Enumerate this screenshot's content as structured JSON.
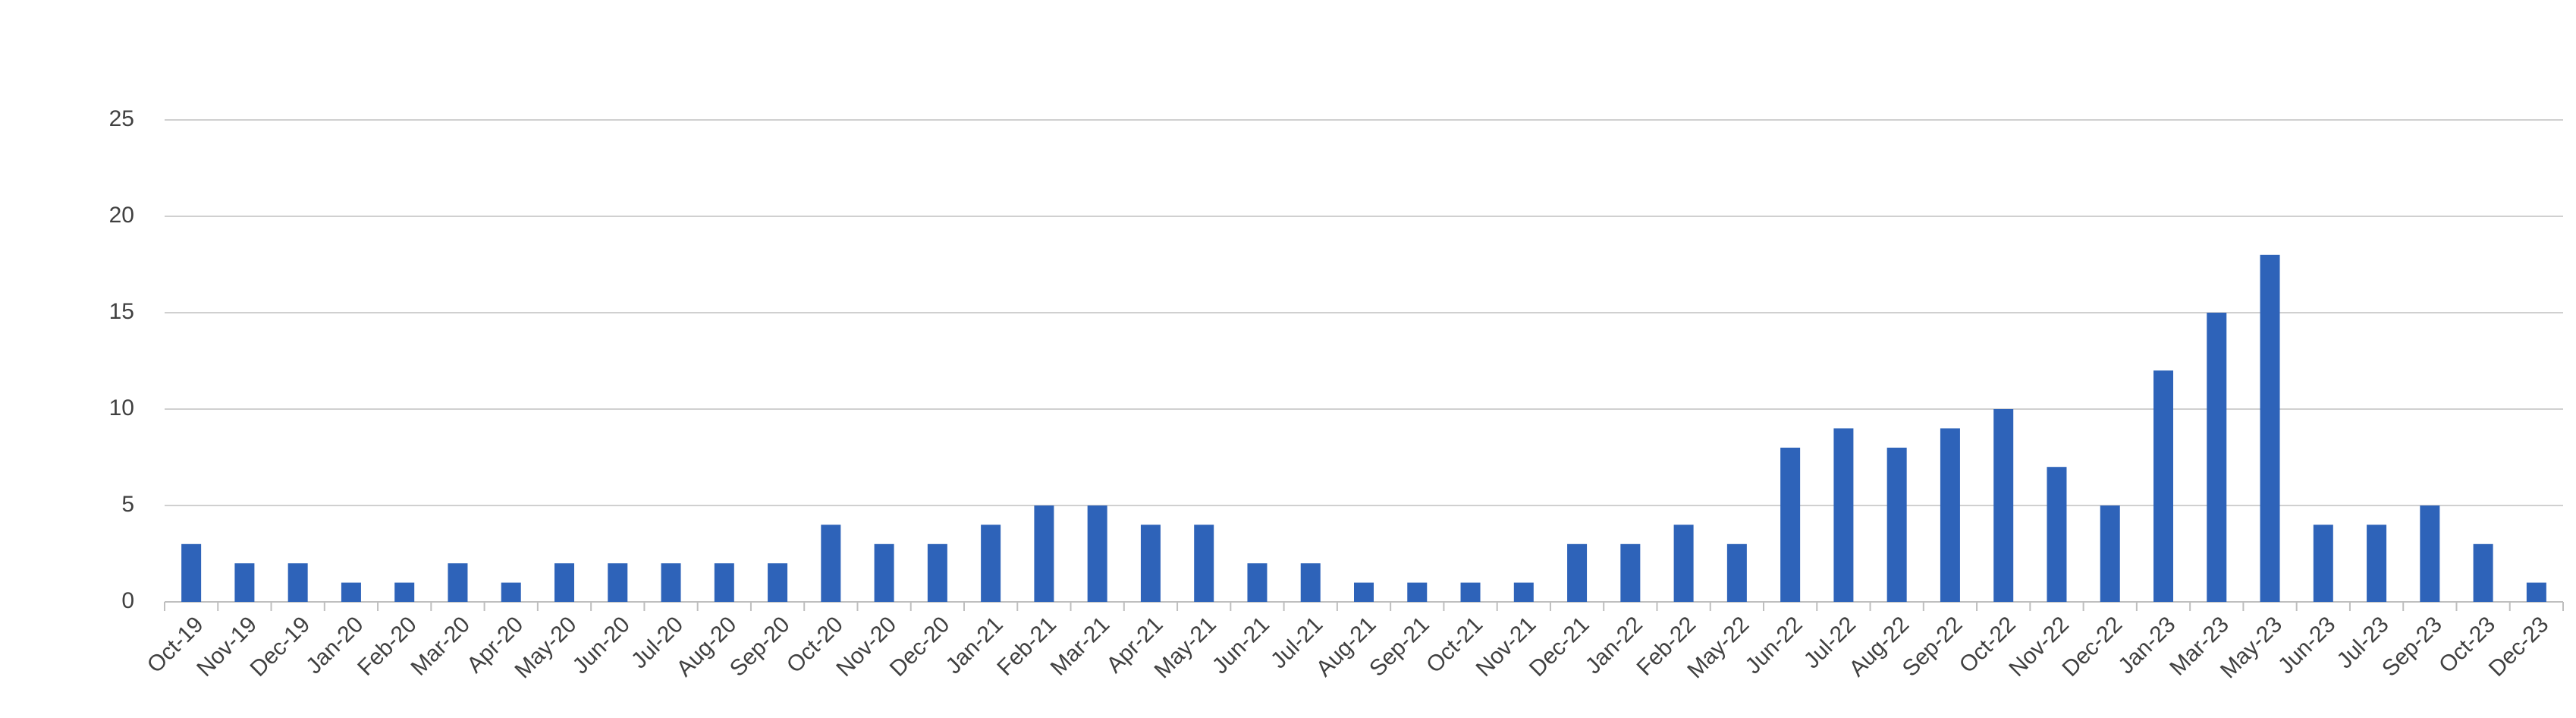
{
  "chart_data": {
    "type": "bar",
    "categories": [
      "Oct-19",
      "Nov-19",
      "Dec-19",
      "Jan-20",
      "Feb-20",
      "Mar-20",
      "Apr-20",
      "May-20",
      "Jun-20",
      "Jul-20",
      "Aug-20",
      "Sep-20",
      "Oct-20",
      "Nov-20",
      "Dec-20",
      "Jan-21",
      "Feb-21",
      "Mar-21",
      "Apr-21",
      "May-21",
      "Jun-21",
      "Jul-21",
      "Aug-21",
      "Sep-21",
      "Oct-21",
      "Nov-21",
      "Dec-21",
      "Jan-22",
      "Feb-22",
      "May-22",
      "Jun-22",
      "Jul-22",
      "Aug-22",
      "Sep-22",
      "Oct-22",
      "Nov-22",
      "Dec-22",
      "Jan-23",
      "Mar-23",
      "May-23",
      "Jun-23",
      "Jul-23",
      "Sep-23",
      "Oct-23",
      "Dec-23"
    ],
    "values": [
      3,
      2,
      2,
      1,
      1,
      2,
      1,
      2,
      2,
      2,
      2,
      2,
      4,
      3,
      3,
      4,
      5,
      5,
      4,
      4,
      2,
      2,
      1,
      1,
      1,
      1,
      3,
      3,
      4,
      3,
      8,
      9,
      8,
      9,
      10,
      7,
      5,
      12,
      15,
      18,
      4,
      4,
      5,
      3,
      1
    ],
    "color": "#2e63b9",
    "ylim": [
      0,
      25
    ],
    "yticks": [
      0,
      5,
      10,
      15,
      20,
      25
    ],
    "grid": true
  }
}
